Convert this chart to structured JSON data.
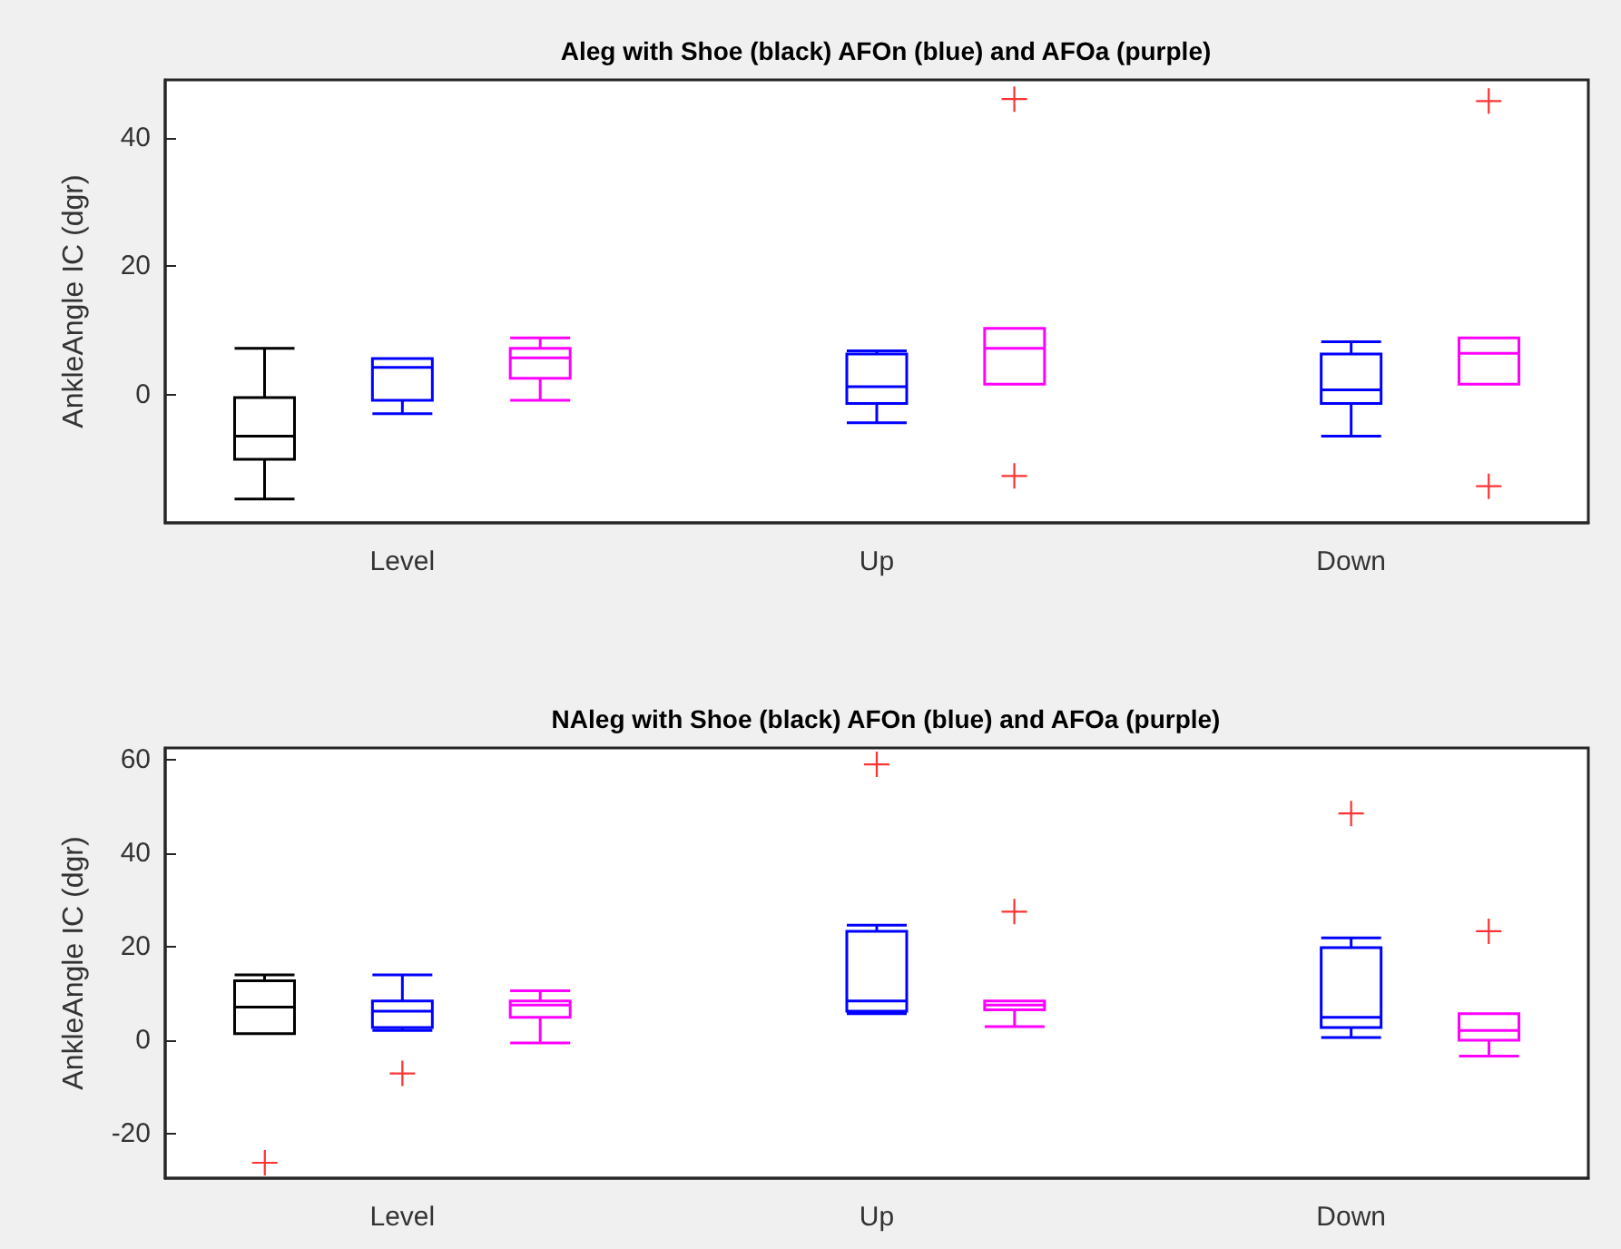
{
  "chart_data": [
    {
      "type": "box",
      "title": "Aleg with Shoe (black) AFOn (blue) and AFOa (purple)",
      "ylabel": "AnkleAngle IC (dgr)",
      "categories": [
        "Level",
        "Up",
        "Down"
      ],
      "ylim": [
        -20,
        49
      ],
      "yticks": [
        0,
        20,
        40
      ],
      "grid": false,
      "series": [
        {
          "color": "#000000",
          "boxes": [
            {
              "low": -16.3,
              "q1": -10.1,
              "median": -6.5,
              "q3": -0.5,
              "high": 7.2
            },
            null,
            null
          ]
        },
        {
          "color": "#0000ff",
          "boxes": [
            {
              "low": -3.0,
              "q1": -0.9,
              "median": 4.2,
              "q3": 5.6,
              "high": 5.6
            },
            {
              "low": -4.4,
              "q1": -1.4,
              "median": 1.2,
              "q3": 6.3,
              "high": 6.8
            },
            {
              "low": -6.5,
              "q1": -1.4,
              "median": 0.7,
              "q3": 6.3,
              "high": 8.2
            }
          ]
        },
        {
          "color": "#ff00ff",
          "boxes": [
            {
              "low": -0.9,
              "q1": 2.5,
              "median": 5.7,
              "q3": 7.2,
              "high": 8.8
            },
            {
              "low": 1.6,
              "q1": 1.6,
              "median": 7.2,
              "q3": 10.3,
              "high": 10.3,
              "outliers": [
                46.0,
                -12.7
              ]
            },
            {
              "low": 1.6,
              "q1": 1.6,
              "median": 6.4,
              "q3": 8.8,
              "high": 8.8,
              "outliers": [
                45.7,
                -14.3
              ]
            }
          ]
        }
      ]
    },
    {
      "type": "box",
      "title": "NAleg with Shoe (black) AFOn (blue) and AFOa (purple)",
      "ylabel": "AnkleAngle IC (dgr)",
      "categories": [
        "Level",
        "Up",
        "Down"
      ],
      "ylim": [
        -29.5,
        62.5
      ],
      "yticks": [
        -20,
        0,
        20,
        40,
        60
      ],
      "grid": false,
      "series": [
        {
          "color": "#000000",
          "boxes": [
            {
              "low": 1.4,
              "q1": 1.4,
              "median": 7.1,
              "q3": 12.7,
              "high": 14.0,
              "outliers": [
                -26.2
              ]
            },
            null,
            null
          ]
        },
        {
          "color": "#0000ff",
          "boxes": [
            {
              "low": 2.1,
              "q1": 2.7,
              "median": 6.2,
              "q3": 8.4,
              "high": 14.0,
              "outliers": [
                -7.1
              ]
            },
            {
              "low": 5.7,
              "q1": 6.2,
              "median": 8.4,
              "q3": 23.3,
              "high": 24.6,
              "outliers": [
                59.0
              ]
            },
            {
              "low": 0.6,
              "q1": 2.7,
              "median": 4.9,
              "q3": 19.8,
              "high": 21.9,
              "outliers": [
                48.5
              ]
            }
          ]
        },
        {
          "color": "#ff00ff",
          "boxes": [
            {
              "low": -0.6,
              "q1": 4.9,
              "median": 7.5,
              "q3": 8.4,
              "high": 10.6
            },
            {
              "low": 2.9,
              "q1": 6.5,
              "median": 7.5,
              "q3": 8.4,
              "high": 8.4,
              "outliers": [
                27.5
              ]
            },
            {
              "low": -3.4,
              "q1": 0,
              "median": 2.1,
              "q3": 5.7,
              "high": 5.7,
              "outliers": [
                23.3
              ]
            }
          ]
        }
      ]
    }
  ]
}
